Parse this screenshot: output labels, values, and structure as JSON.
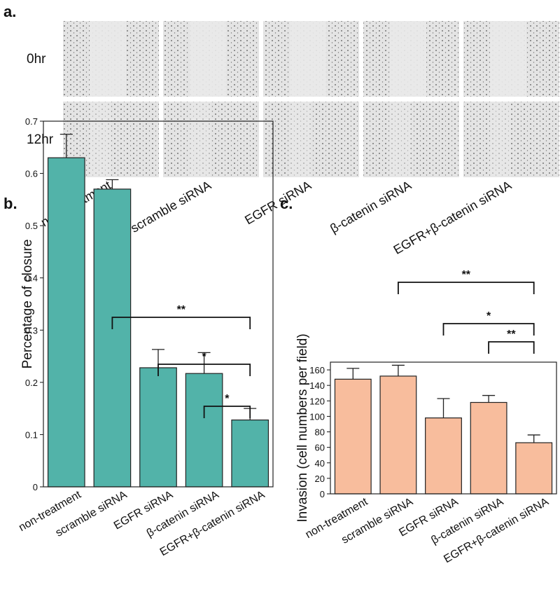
{
  "panel_a": {
    "label": "a.",
    "rows": [
      "0hr",
      "12hr"
    ],
    "columns": [
      "non-treatment",
      "scramble siRNA",
      "EGFR siRNA",
      "β-catenin siRNA",
      "EGFR+β-catenin siRNA"
    ]
  },
  "chart_data": [
    {
      "type": "bar",
      "panel_label": "b.",
      "y_label": "Percentage of closure",
      "categories": [
        "non-treatment",
        "scramble siRNA",
        "EGFR siRNA",
        "β-catenin siRNA",
        "EGFR+β-catenin siRNA"
      ],
      "values": [
        0.63,
        0.57,
        0.228,
        0.217,
        0.128
      ],
      "errors": [
        0.045,
        0.018,
        0.035,
        0.04,
        0.022
      ],
      "color": "#52b3a9",
      "ylim": [
        0,
        0.7
      ],
      "yticks": [
        0,
        0.1,
        0.2,
        0.3,
        0.4,
        0.5,
        0.6,
        0.7
      ],
      "annotations": [
        {
          "text": "**",
          "from": "scramble siRNA",
          "to": "EGFR+β-catenin siRNA"
        },
        {
          "text": "*",
          "from": "EGFR siRNA",
          "to": "EGFR+β-catenin siRNA"
        },
        {
          "text": "*",
          "from": "β-catenin siRNA",
          "to": "EGFR+β-catenin siRNA"
        }
      ]
    },
    {
      "type": "bar",
      "panel_label": "c.",
      "y_label": "Invasion (cell numbers per field)",
      "categories": [
        "non-treatment",
        "scramble siRNA",
        "EGFR siRNA",
        "β-catenin siRNA",
        "EGFR+β-catenin siRNA"
      ],
      "values": [
        148,
        152,
        98,
        118,
        66
      ],
      "errors": [
        14,
        14,
        25,
        9,
        10
      ],
      "color": "#f8bd9d",
      "ylim": [
        0,
        170
      ],
      "yticks": [
        0,
        20,
        40,
        60,
        80,
        100,
        120,
        140,
        160
      ],
      "annotations": [
        {
          "text": "**",
          "from": "scramble siRNA",
          "to": "EGFR+β-catenin siRNA"
        },
        {
          "text": "*",
          "from": "EGFR siRNA",
          "to": "EGFR+β-catenin siRNA"
        },
        {
          "text": "**",
          "from": "β-catenin siRNA",
          "to": "EGFR+β-catenin siRNA"
        }
      ]
    }
  ]
}
